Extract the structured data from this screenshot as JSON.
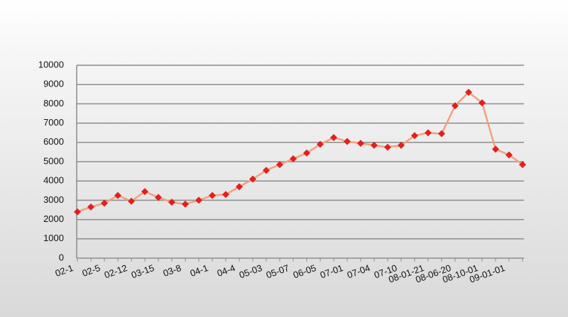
{
  "chart_data": {
    "type": "line",
    "categories": [
      "02-1",
      null,
      "02-5",
      null,
      "02-12",
      null,
      "03-15",
      null,
      "03-8",
      null,
      "04-1",
      null,
      "04-4",
      null,
      "05-03",
      null,
      "05-07",
      null,
      "06-05",
      null,
      "07-01",
      null,
      "07-04",
      null,
      "07-10",
      null,
      "08-01-21",
      null,
      "08-06-20",
      null,
      "08-10-01",
      null,
      "09-01-01",
      null
    ],
    "series": [
      {
        "color": "#f2a07e",
        "marker_color": "#e3201c",
        "values": [
          2400,
          2650,
          2850,
          3250,
          2950,
          3450,
          3150,
          2900,
          2800,
          3000,
          3250,
          3300,
          3700,
          4100,
          4550,
          4850,
          5150,
          5450,
          5900,
          6250,
          6050,
          5950,
          5850,
          5750,
          5850,
          6350,
          6500,
          6450,
          7900,
          8600,
          8050,
          5650,
          5350,
          4850
        ]
      }
    ],
    "ylim": [
      0,
      10000
    ],
    "yticks": [
      0,
      1000,
      2000,
      3000,
      4000,
      5000,
      6000,
      7000,
      8000,
      9000,
      10000
    ],
    "grid": true
  }
}
